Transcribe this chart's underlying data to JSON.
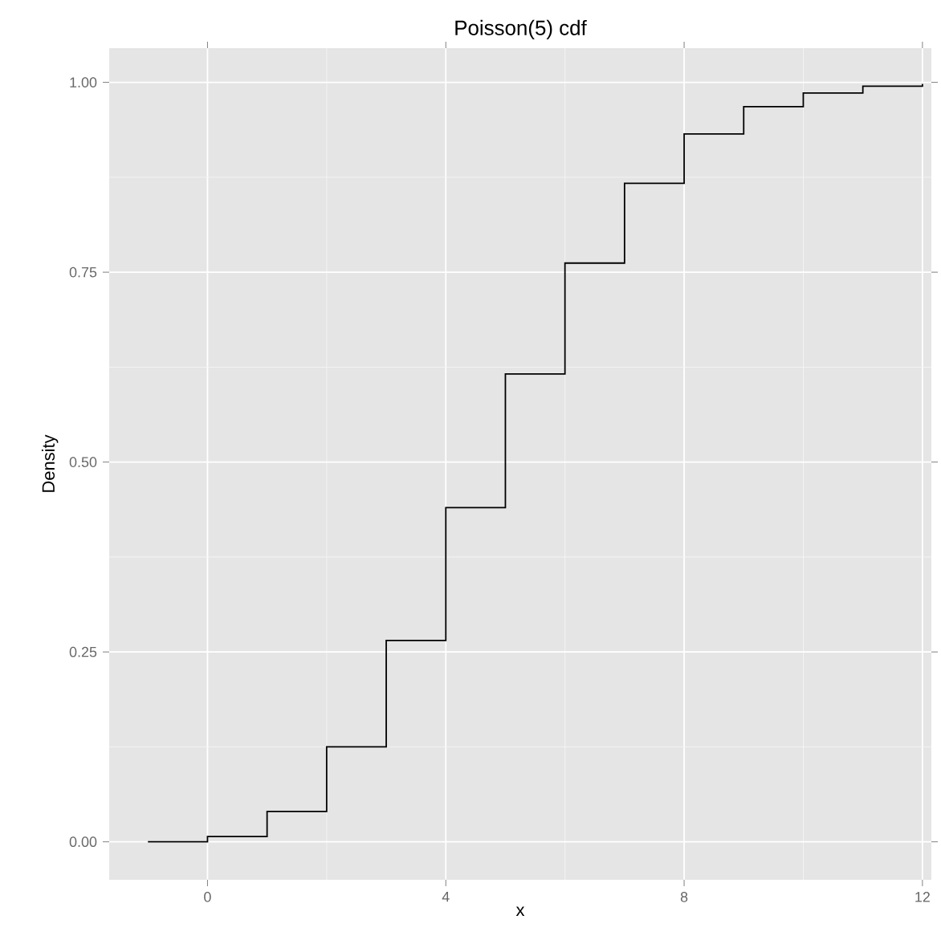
{
  "chart_data": {
    "type": "step",
    "title": "Poisson(5) cdf",
    "xlabel": "x",
    "ylabel": "Density",
    "x": [
      -1,
      0,
      1,
      2,
      3,
      4,
      5,
      6,
      7,
      8,
      9,
      10,
      11,
      12
    ],
    "values": [
      0.0,
      0.007,
      0.04,
      0.125,
      0.265,
      0.44,
      0.616,
      0.762,
      0.867,
      0.932,
      0.968,
      0.986,
      0.995,
      0.998
    ],
    "color": "#000000",
    "xlim": [
      -1.65,
      12.15
    ],
    "ylim": [
      -0.05,
      1.045
    ],
    "xticks": [
      0,
      4,
      8,
      12
    ],
    "yticks": [
      {
        "value": 0,
        "label": "0.00"
      },
      {
        "value": 0.25,
        "label": "0.25"
      },
      {
        "value": 0.5,
        "label": "0.50"
      },
      {
        "value": 0.75,
        "label": "0.75"
      },
      {
        "value": 1,
        "label": "1.00"
      }
    ],
    "grid": true
  }
}
